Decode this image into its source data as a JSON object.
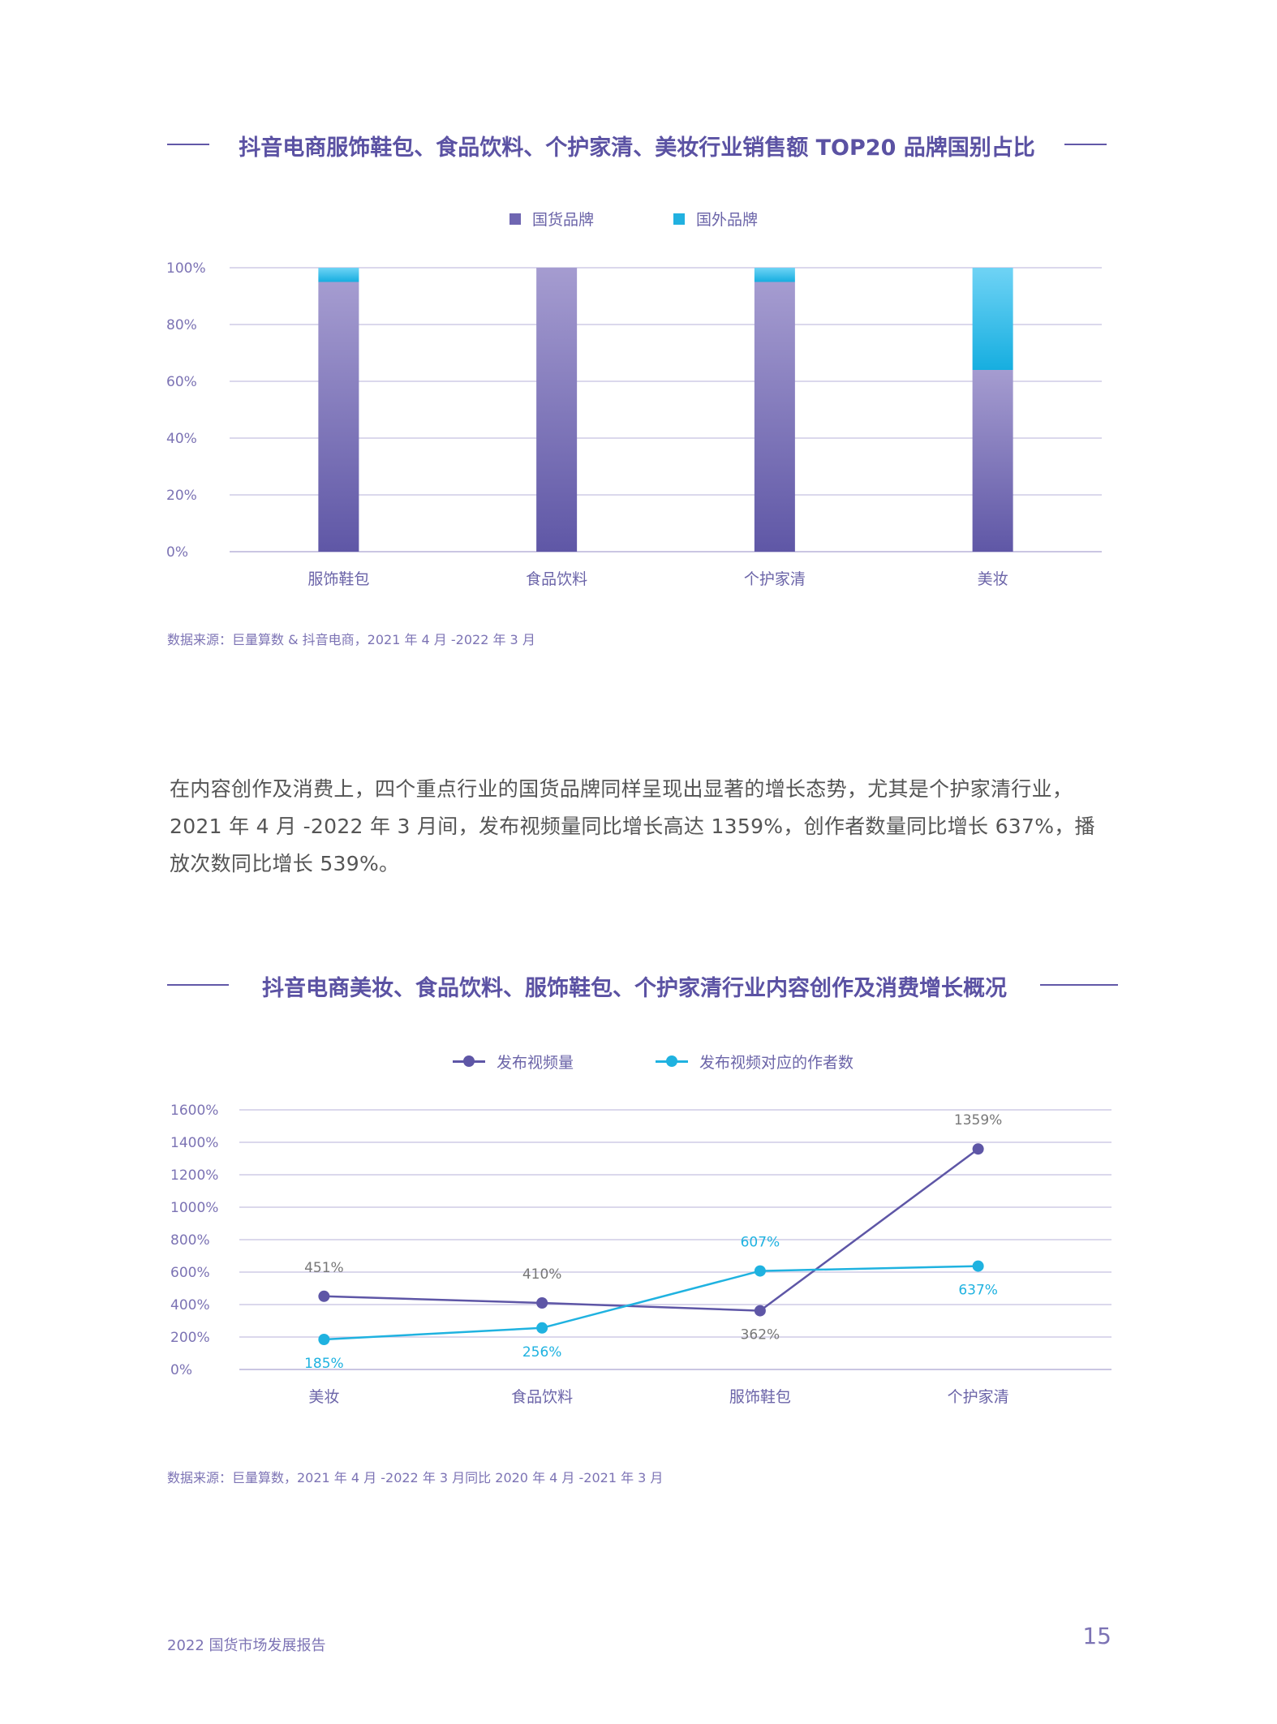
{
  "section1": {
    "title": "抖音电商服饰鞋包、食品饮料、个护家清、美妆行业销售额 TOP20 品牌国别占比",
    "source": "数据来源：巨量算数 & 抖音电商，2021 年 4 月 -2022 年 3 月"
  },
  "paragraph": "在内容创作及消费上，四个重点行业的国货品牌同样呈现出显著的增长态势，尤其是个护家清行业，2021 年 4 月 -2022 年 3 月间，发布视频量同比增长高达 1359%，创作者数量同比增长 637%，播放次数同比增长 539%。",
  "section2": {
    "title": "抖音电商美妆、食品饮料、服饰鞋包、个护家清行业内容创作及消费增长概况",
    "source": "数据来源：巨量算数，2021 年 4 月 -2022 年 3 月同比 2020 年 4 月 -2021 年 3 月"
  },
  "footer": {
    "report": "2022 国货市场发展报告",
    "page": "15"
  },
  "colors": {
    "domestic": "#6f66b2",
    "foreign": "#21b1e0",
    "line_videos": "#5e56a6",
    "line_creators": "#1fb2e0",
    "title": "#5b52a3"
  },
  "chart_data": [
    {
      "type": "bar",
      "stacked": true,
      "categories": [
        "服饰鞋包",
        "食品饮料",
        "个护家清",
        "美妆"
      ],
      "series": [
        {
          "name": "国货品牌",
          "values": [
            95,
            100,
            95,
            64
          ]
        },
        {
          "name": "国外品牌",
          "values": [
            5,
            0,
            5,
            36
          ]
        }
      ],
      "yticks": [
        "0%",
        "20%",
        "40%",
        "60%",
        "80%",
        "100%"
      ],
      "ylim": [
        0,
        100
      ],
      "grid": true,
      "legend": "top-center"
    },
    {
      "type": "line",
      "categories": [
        "美妆",
        "食品饮料",
        "服饰鞋包",
        "个护家清"
      ],
      "series": [
        {
          "name": "发布视频量",
          "values": [
            451,
            410,
            362,
            1359
          ],
          "labels": [
            "451%",
            "410%",
            "362%",
            "1359%"
          ]
        },
        {
          "name": "发布视频对应的作者数",
          "values": [
            185,
            256,
            607,
            637
          ],
          "labels": [
            "185%",
            "256%",
            "607%",
            "637%"
          ]
        }
      ],
      "yticks": [
        "0%",
        "200%",
        "400%",
        "600%",
        "800%",
        "1000%",
        "1200%",
        "1400%",
        "1600%"
      ],
      "ylim": [
        0,
        1600
      ],
      "grid": true,
      "legend": "top-center"
    }
  ]
}
